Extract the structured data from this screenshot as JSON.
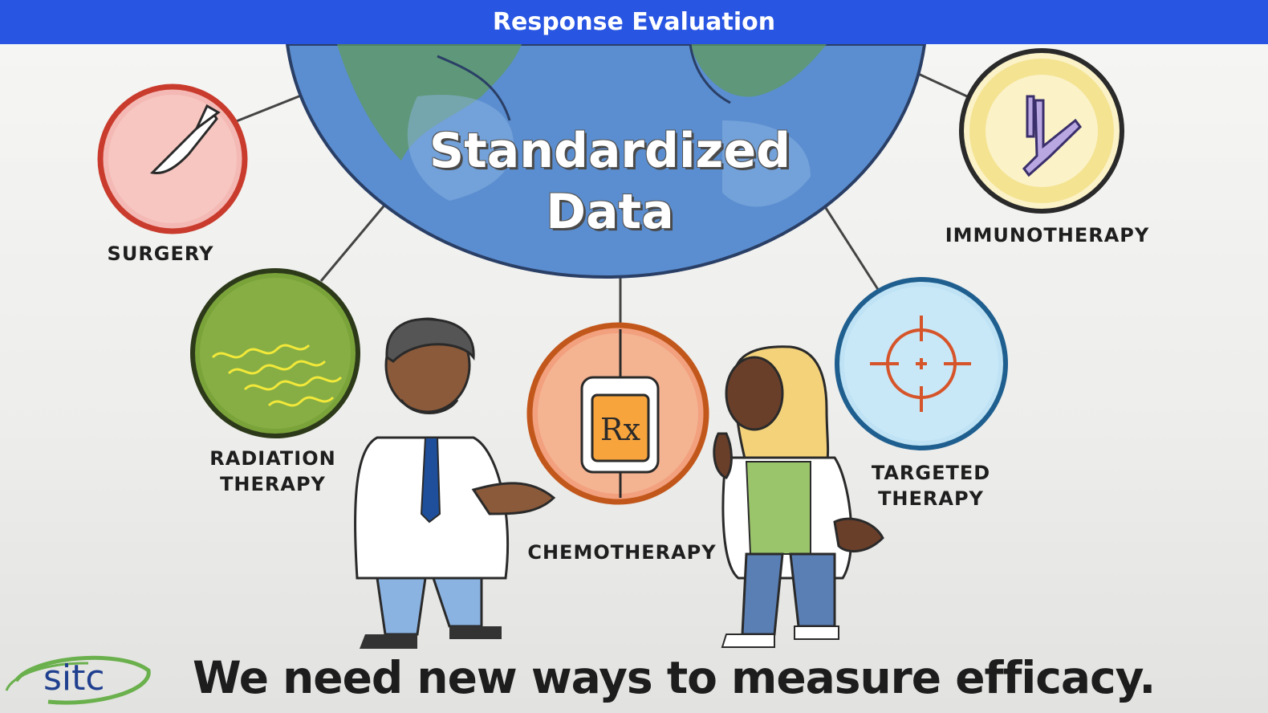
{
  "header": {
    "title": "Response Evaluation"
  },
  "globe": {
    "line1": "Standardized",
    "line2": "Data"
  },
  "therapies": {
    "surgery": "SURGERY",
    "radiation_1": "RADIATION",
    "radiation_2": "THERAPY",
    "chemotherapy": "CHEMOTHERAPY",
    "immunotherapy": "IMMUNOTHERAPY",
    "targeted_1": "TARGETED",
    "targeted_2": "THERAPY"
  },
  "chemo_bag_label": "Rx",
  "footer": {
    "logo": "sitc",
    "tagline": "We need new ways to measure efficacy."
  },
  "colors": {
    "header": "#2855e2",
    "surgery": "#f4b9b4",
    "radiation": "#7aa33a",
    "chemotherapy": "#f2a07e",
    "immunotherapy": "#fbf2c8",
    "targeted": "#bfe3f4",
    "logo": "#1f3f8f"
  }
}
